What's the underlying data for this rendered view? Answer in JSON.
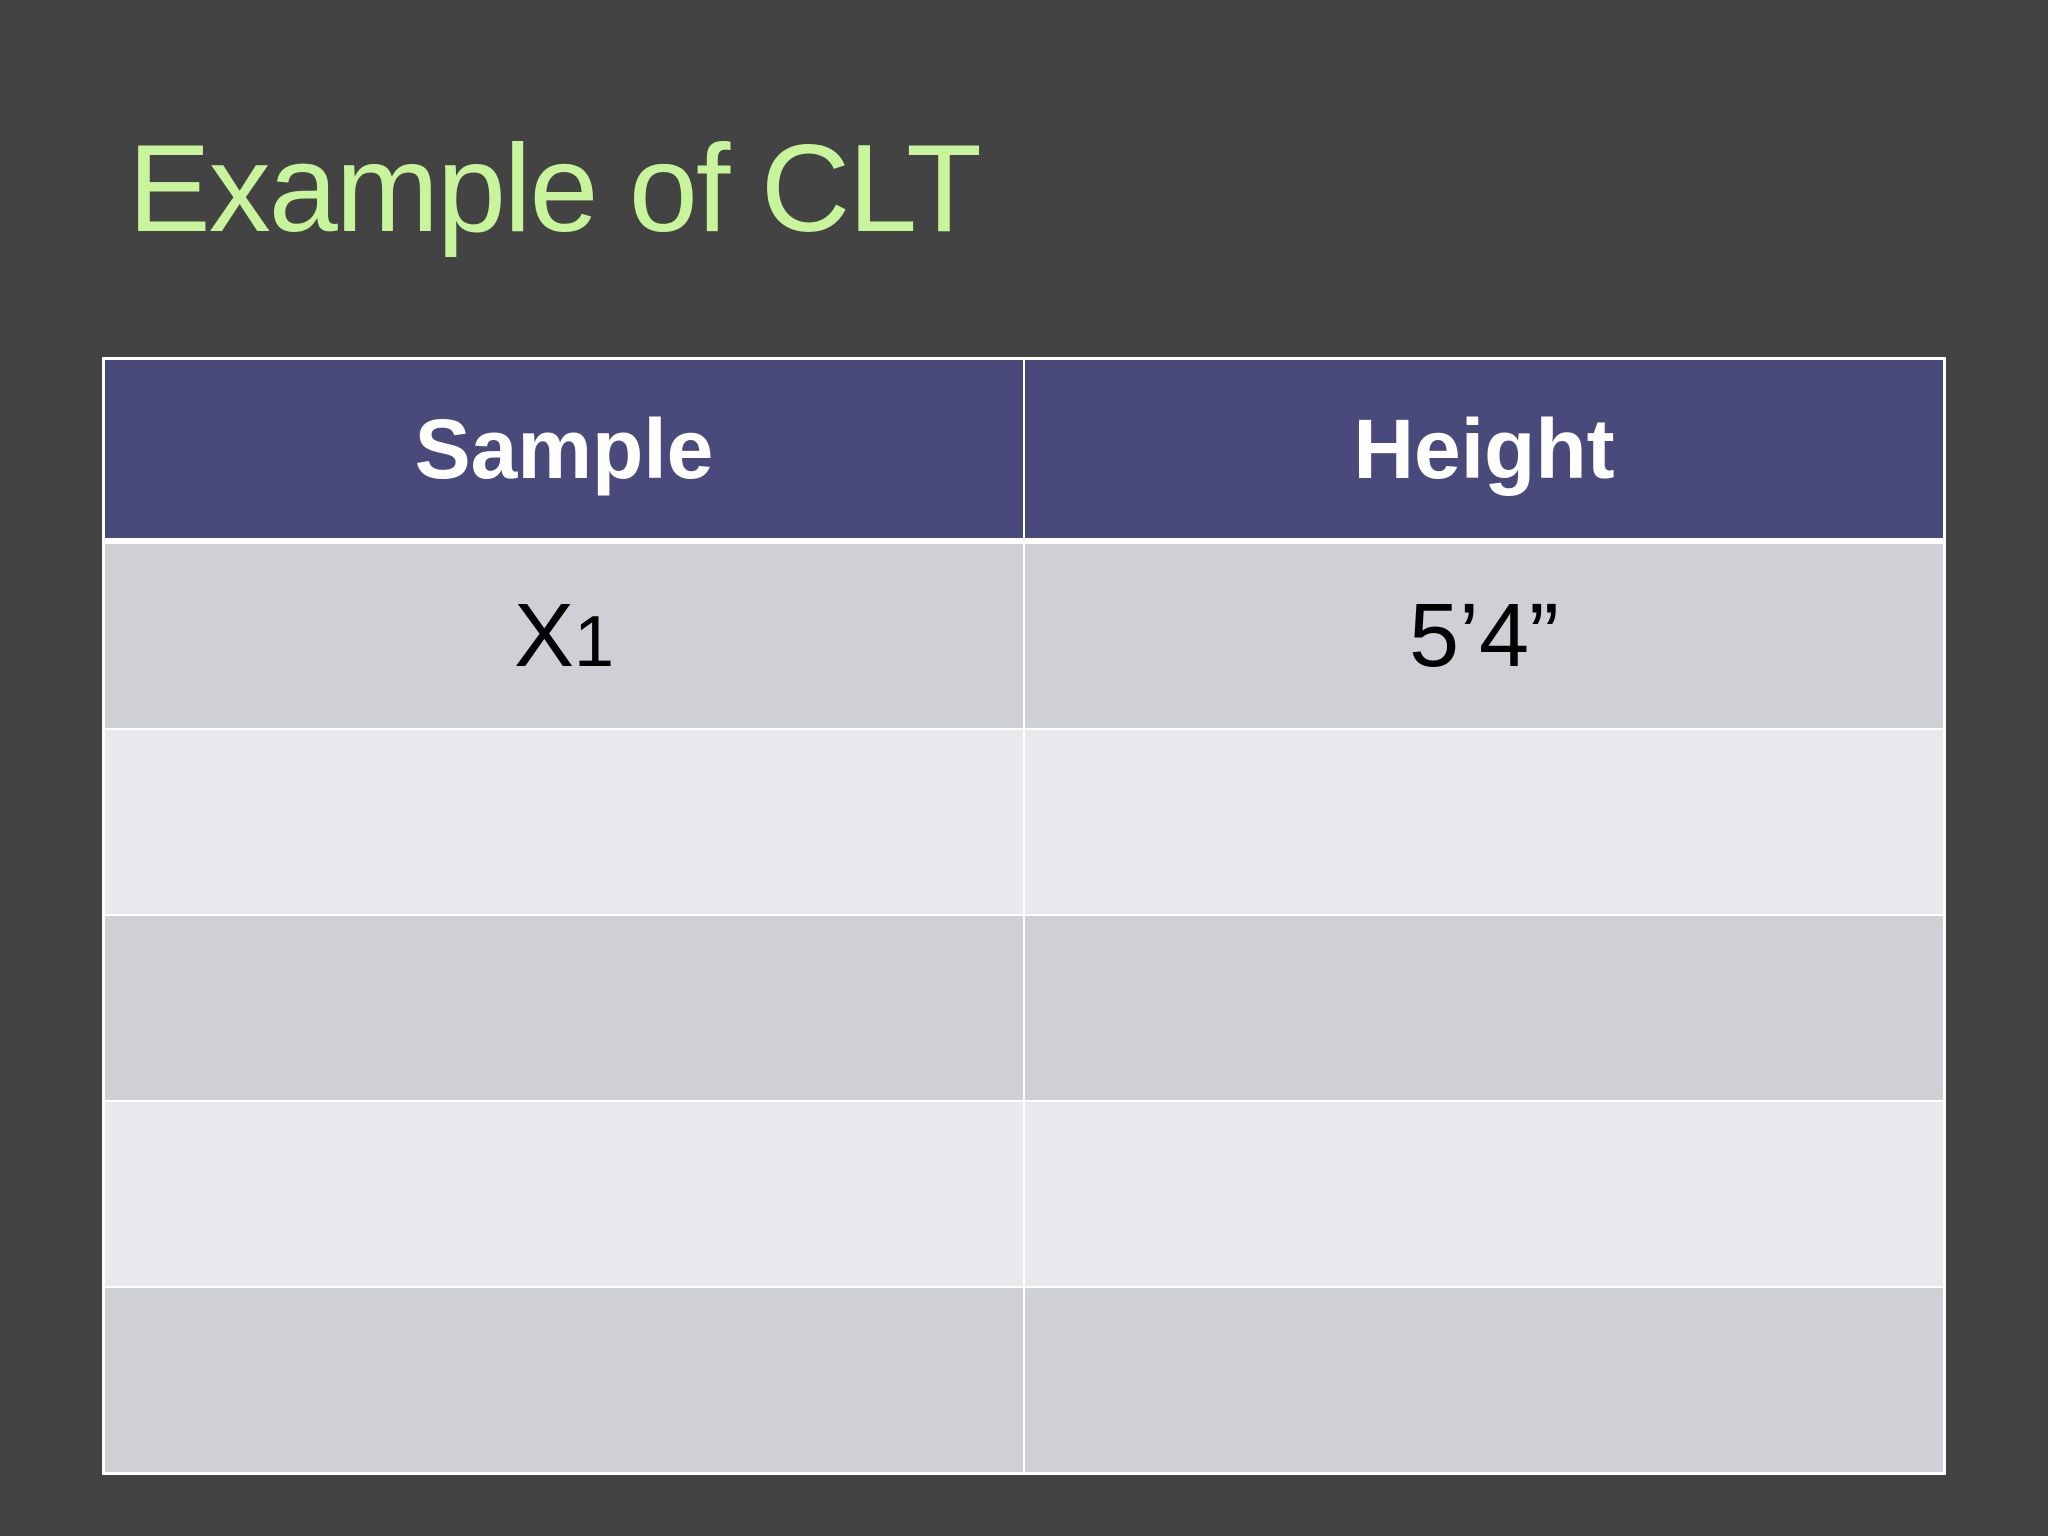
{
  "title": "Example of CLT",
  "table": {
    "header": [
      "Sample",
      "Height"
    ],
    "rows": [
      [
        {
          "base": "X",
          "sub": "1"
        },
        "5’4”"
      ]
    ]
  }
}
